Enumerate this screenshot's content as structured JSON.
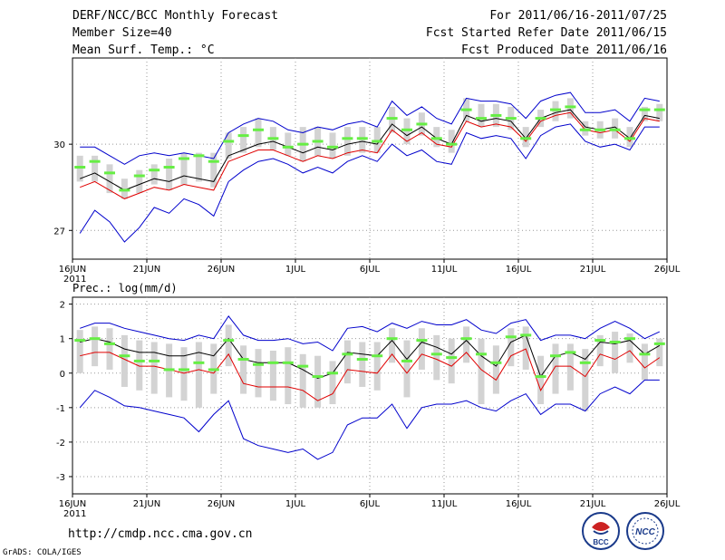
{
  "header": {
    "title": "DERF/NCC/BCC Monthly Forecast",
    "member_size": "Member Size=40",
    "variable": "Mean Surf. Temp.: °C",
    "period": "For 2011/06/16-2011/07/25",
    "start_date": "Fcst Started Refer Date 2011/06/15",
    "produced_date": "Fcst Produced Date 2011/06/16"
  },
  "footer": {
    "url": "http://cmdp.ncc.cma.gov.cn",
    "credit": "GrADS: COLA/IGES",
    "logo_left": "BCC",
    "logo_right": "NCC"
  },
  "colors": {
    "mean": "#000000",
    "control": "#e00000",
    "envelope": "#0000cc",
    "box": "#d3d3d3",
    "median": "#66ee44",
    "grid": "#999999"
  },
  "chart_data": [
    {
      "type": "line",
      "title": "Mean Surf. Temp.: °C",
      "x_ticks": [
        "16JUN",
        "21JUN",
        "26JUN",
        "1JUL",
        "6JUL",
        "11JUL",
        "16JUL",
        "21JUL",
        "26JUL"
      ],
      "x_year": "2011",
      "y_ticks": [
        "30",
        "27"
      ],
      "ylim": [
        26,
        33
      ],
      "series": [
        {
          "name": "mean",
          "values": [
            28.8,
            29.0,
            28.7,
            28.4,
            28.6,
            28.8,
            28.7,
            28.9,
            28.8,
            28.7,
            29.6,
            29.8,
            30.0,
            30.1,
            29.9,
            29.7,
            29.9,
            29.8,
            30.0,
            30.1,
            30.0,
            30.7,
            30.3,
            30.6,
            30.2,
            30.0,
            31.0,
            30.8,
            30.9,
            30.8,
            30.2,
            30.9,
            31.1,
            31.2,
            30.6,
            30.5,
            30.6,
            30.2,
            31.0,
            30.9
          ]
        },
        {
          "name": "control",
          "values": [
            28.5,
            28.7,
            28.4,
            28.1,
            28.3,
            28.5,
            28.4,
            28.6,
            28.5,
            28.4,
            29.4,
            29.6,
            29.8,
            29.8,
            29.6,
            29.4,
            29.6,
            29.5,
            29.7,
            29.8,
            29.7,
            30.5,
            30.1,
            30.4,
            30.0,
            29.9,
            30.8,
            30.6,
            30.7,
            30.6,
            30.1,
            30.8,
            31.0,
            31.1,
            30.5,
            30.4,
            30.5,
            30.1,
            30.9,
            30.8
          ]
        },
        {
          "name": "max",
          "values": [
            29.9,
            29.9,
            29.6,
            29.3,
            29.6,
            29.7,
            29.6,
            29.7,
            29.6,
            29.5,
            30.4,
            30.7,
            30.9,
            30.8,
            30.5,
            30.4,
            30.6,
            30.5,
            30.7,
            30.8,
            30.6,
            31.5,
            31.0,
            31.3,
            30.9,
            30.7,
            31.6,
            31.5,
            31.5,
            31.4,
            30.9,
            31.5,
            31.7,
            31.8,
            31.1,
            31.1,
            31.2,
            30.8,
            31.6,
            31.5
          ]
        },
        {
          "name": "min",
          "values": [
            26.9,
            27.7,
            27.3,
            26.6,
            27.1,
            27.8,
            27.6,
            28.1,
            27.9,
            27.5,
            28.7,
            29.1,
            29.4,
            29.5,
            29.3,
            29.0,
            29.2,
            29.0,
            29.4,
            29.6,
            29.4,
            30.0,
            29.6,
            29.8,
            29.4,
            29.3,
            30.4,
            30.2,
            30.3,
            30.2,
            29.5,
            30.3,
            30.6,
            30.7,
            30.1,
            29.9,
            30.0,
            29.8,
            30.6,
            30.6
          ]
        },
        {
          "name": "median",
          "values": [
            29.2,
            29.4,
            29.0,
            28.4,
            28.9,
            29.1,
            29.2,
            29.5,
            29.6,
            29.4,
            30.1,
            30.3,
            30.5,
            30.2,
            29.9,
            30.0,
            30.1,
            29.9,
            30.2,
            30.2,
            30.1,
            30.9,
            30.5,
            30.7,
            30.2,
            30.0,
            31.2,
            30.9,
            31.0,
            30.9,
            30.2,
            30.9,
            31.2,
            31.3,
            30.5,
            30.5,
            30.5,
            30.2,
            31.2,
            31.2
          ]
        },
        {
          "name": "box_low",
          "values": [
            28.7,
            28.7,
            28.3,
            28.1,
            28.3,
            28.6,
            28.4,
            28.6,
            28.7,
            28.5,
            29.5,
            29.7,
            29.9,
            29.8,
            29.6,
            29.4,
            29.6,
            29.5,
            29.6,
            29.7,
            29.7,
            30.4,
            30.0,
            30.3,
            29.9,
            29.7,
            30.8,
            30.6,
            30.6,
            30.5,
            29.9,
            30.6,
            30.8,
            30.9,
            30.3,
            30.2,
            30.2,
            29.9,
            30.8,
            30.8
          ]
        },
        {
          "name": "box_high",
          "values": [
            29.6,
            29.6,
            29.3,
            28.8,
            29.1,
            29.3,
            29.5,
            29.7,
            29.7,
            29.7,
            30.4,
            30.6,
            30.9,
            30.6,
            30.4,
            30.6,
            30.6,
            30.4,
            30.6,
            30.6,
            30.6,
            31.3,
            30.9,
            31.1,
            30.6,
            30.5,
            31.6,
            31.4,
            31.4,
            31.3,
            30.6,
            31.2,
            31.5,
            31.6,
            30.8,
            30.8,
            30.9,
            30.6,
            31.3,
            31.4
          ]
        }
      ]
    },
    {
      "type": "line",
      "title": "Prec.: log(mm/d)",
      "x_ticks": [
        "16JUN",
        "21JUN",
        "26JUN",
        "1JUL",
        "6JUL",
        "11JUL",
        "16JUL",
        "21JUL",
        "26JUL"
      ],
      "x_year": "2011",
      "y_ticks": [
        "2",
        "1",
        "0",
        "-1",
        "-2",
        "-3"
      ],
      "ylim": [
        -3.5,
        2.2
      ],
      "series": [
        {
          "name": "mean",
          "values": [
            0.9,
            1.0,
            0.9,
            0.7,
            0.6,
            0.6,
            0.5,
            0.5,
            0.6,
            0.5,
            1.0,
            0.4,
            0.3,
            0.3,
            0.3,
            0.1,
            -0.15,
            0.0,
            0.6,
            0.55,
            0.5,
            0.95,
            0.4,
            0.9,
            0.75,
            0.55,
            0.95,
            0.5,
            0.2,
            0.9,
            1.1,
            -0.1,
            0.5,
            0.6,
            0.4,
            0.9,
            0.85,
            0.95,
            0.55,
            0.8
          ]
        },
        {
          "name": "control",
          "values": [
            0.5,
            0.6,
            0.6,
            0.4,
            0.2,
            0.2,
            0.1,
            0.0,
            0.1,
            0.0,
            0.55,
            -0.3,
            -0.4,
            -0.4,
            -0.4,
            -0.5,
            -0.8,
            -0.6,
            0.1,
            0.05,
            0.0,
            0.55,
            0.0,
            0.55,
            0.4,
            0.2,
            0.6,
            0.1,
            -0.2,
            0.5,
            0.7,
            -0.5,
            0.2,
            0.2,
            -0.1,
            0.55,
            0.4,
            0.65,
            0.15,
            0.45
          ]
        },
        {
          "name": "max",
          "values": [
            1.3,
            1.45,
            1.45,
            1.3,
            1.2,
            1.1,
            1.0,
            0.95,
            1.1,
            1.0,
            1.65,
            1.1,
            0.95,
            0.95,
            1.0,
            0.85,
            0.9,
            0.65,
            1.3,
            1.35,
            1.2,
            1.45,
            1.3,
            1.5,
            1.4,
            1.4,
            1.55,
            1.25,
            1.15,
            1.45,
            1.55,
            0.95,
            1.1,
            1.1,
            1.0,
            1.3,
            1.5,
            1.3,
            1.0,
            1.2
          ]
        },
        {
          "name": "min",
          "values": [
            -1.0,
            -0.5,
            -0.7,
            -0.95,
            -1.0,
            -1.1,
            -1.2,
            -1.3,
            -1.7,
            -1.2,
            -0.8,
            -1.9,
            -2.1,
            -2.2,
            -2.3,
            -2.2,
            -2.5,
            -2.3,
            -1.5,
            -1.3,
            -1.3,
            -0.9,
            -1.6,
            -1.0,
            -0.9,
            -0.9,
            -0.8,
            -1.0,
            -1.1,
            -0.8,
            -0.6,
            -1.2,
            -0.9,
            -0.9,
            -1.1,
            -0.6,
            -0.4,
            -0.6,
            -0.2,
            -0.2
          ]
        },
        {
          "name": "median",
          "values": [
            0.95,
            1.0,
            0.85,
            0.5,
            0.35,
            0.35,
            0.1,
            0.1,
            0.3,
            0.1,
            0.95,
            0.4,
            0.25,
            0.3,
            0.3,
            0.2,
            -0.1,
            0.0,
            0.55,
            0.4,
            0.5,
            1.0,
            0.35,
            0.95,
            0.55,
            0.45,
            1.0,
            0.55,
            0.3,
            1.05,
            1.1,
            -0.1,
            0.5,
            0.6,
            0.3,
            0.95,
            0.9,
            1.0,
            0.55,
            0.85
          ]
        },
        {
          "name": "box_low",
          "values": [
            0.0,
            0.2,
            0.1,
            -0.4,
            -0.5,
            -0.6,
            -0.7,
            -0.8,
            -1.0,
            -0.6,
            0.2,
            -0.6,
            -0.7,
            -0.8,
            -0.9,
            -1.0,
            -1.0,
            -0.9,
            -0.3,
            -0.4,
            -0.5,
            0.3,
            -0.7,
            0.1,
            -0.2,
            -0.3,
            0.3,
            -0.9,
            -0.6,
            0.2,
            0.1,
            -0.9,
            -0.6,
            -0.5,
            -1.1,
            0.2,
            0.0,
            0.3,
            -0.2,
            0.2
          ]
        },
        {
          "name": "box_high",
          "values": [
            1.25,
            1.35,
            1.3,
            1.1,
            0.95,
            0.9,
            0.85,
            0.75,
            0.9,
            0.85,
            1.4,
            0.8,
            0.7,
            0.65,
            0.75,
            0.55,
            0.5,
            0.35,
            0.95,
            0.9,
            0.9,
            1.3,
            0.95,
            1.3,
            1.1,
            1.0,
            1.35,
            1.0,
            0.8,
            1.3,
            1.35,
            0.5,
            0.85,
            0.85,
            0.7,
            1.1,
            1.2,
            1.15,
            0.85,
            1.0
          ]
        }
      ]
    }
  ]
}
